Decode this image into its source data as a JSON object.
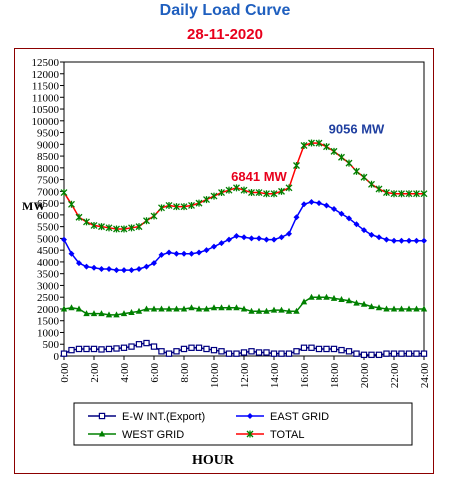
{
  "header": {
    "title": "Daily Load Curve",
    "subtitle": "28-11-2020",
    "title_color": "#1f5fbf",
    "subtitle_color": "#e8001c"
  },
  "chart_data": {
    "type": "line",
    "xlabel": "HOUR",
    "ylabel": "MW",
    "ylim": [
      0,
      12500
    ],
    "y_ticks": [
      0,
      500,
      1000,
      1500,
      2000,
      2500,
      3000,
      3500,
      4000,
      4500,
      5000,
      5500,
      6000,
      6500,
      7000,
      7500,
      8000,
      8500,
      9000,
      9500,
      10000,
      10500,
      11000,
      11500,
      12000,
      12500
    ],
    "x_tick_labels": [
      "0:00",
      "2:00",
      "4:00",
      "6:00",
      "8:00",
      "10:00",
      "12:00",
      "14:00",
      "16:00",
      "18:00",
      "20:00",
      "22:00",
      "24:00"
    ],
    "x": [
      0,
      1,
      2,
      3,
      4,
      5,
      6,
      7,
      8,
      9,
      10,
      11,
      12,
      13,
      14,
      15,
      16,
      17,
      18,
      19,
      20,
      21,
      22,
      23,
      24,
      25,
      26,
      27,
      28,
      29,
      30,
      31,
      32,
      33,
      34,
      35,
      36,
      37,
      38,
      39,
      40,
      41,
      42,
      43,
      44,
      45,
      46,
      47,
      48
    ],
    "grid": false,
    "legend_position": "bottom",
    "series": [
      {
        "name": "E-W INT.(Export)",
        "color": "#000080",
        "marker": "square",
        "values": [
          100,
          250,
          300,
          300,
          300,
          280,
          300,
          320,
          350,
          400,
          500,
          550,
          400,
          200,
          100,
          200,
          300,
          350,
          350,
          300,
          250,
          200,
          100,
          100,
          150,
          200,
          150,
          150,
          100,
          100,
          100,
          200,
          350,
          350,
          300,
          300,
          300,
          250,
          200,
          100,
          50,
          50,
          50,
          100,
          100,
          100,
          100,
          100,
          100
        ]
      },
      {
        "name": "EAST GRID",
        "color": "#0000ff",
        "marker": "diamond",
        "values": [
          4950,
          4350,
          3950,
          3800,
          3750,
          3700,
          3700,
          3650,
          3650,
          3650,
          3700,
          3800,
          3950,
          4300,
          4400,
          4350,
          4350,
          4350,
          4400,
          4500,
          4650,
          4800,
          4950,
          5100,
          5050,
          5000,
          5000,
          4950,
          4950,
          5050,
          5200,
          5900,
          6450,
          6550,
          6500,
          6400,
          6250,
          6050,
          5850,
          5600,
          5350,
          5150,
          5050,
          4950,
          4900,
          4900,
          4900,
          4900,
          4900
        ]
      },
      {
        "name": "WEST GRID",
        "color": "#008000",
        "marker": "triangle",
        "values": [
          2000,
          2050,
          2000,
          1800,
          1800,
          1800,
          1750,
          1750,
          1800,
          1850,
          1900,
          2000,
          2000,
          2000,
          2000,
          2000,
          2000,
          2050,
          2000,
          2000,
          2050,
          2050,
          2050,
          2050,
          2000,
          1900,
          1900,
          1900,
          1950,
          1950,
          1900,
          1900,
          2300,
          2500,
          2500,
          2500,
          2450,
          2400,
          2350,
          2250,
          2200,
          2100,
          2050,
          2000,
          2000,
          2000,
          2000,
          2000,
          2000
        ]
      },
      {
        "name": "TOTAL",
        "color": "#ff0000",
        "marker": "star",
        "values": [
          6950,
          6450,
          5900,
          5700,
          5550,
          5500,
          5450,
          5400,
          5400,
          5450,
          5500,
          5750,
          5950,
          6300,
          6400,
          6350,
          6350,
          6400,
          6500,
          6650,
          6800,
          6950,
          7050,
          7150,
          7050,
          6950,
          6950,
          6900,
          6900,
          7000,
          7150,
          8100,
          8950,
          9056,
          9050,
          8900,
          8700,
          8450,
          8200,
          7850,
          7600,
          7300,
          7100,
          6950,
          6900,
          6900,
          6900,
          6900,
          6900
        ]
      }
    ],
    "annotations": [
      {
        "text": "6841 MW",
        "x": 26,
        "y": 7450,
        "color": "#e8001c"
      },
      {
        "text": "9056 MW",
        "x": 39,
        "y": 9450,
        "color": "#1f3fa0"
      }
    ]
  }
}
